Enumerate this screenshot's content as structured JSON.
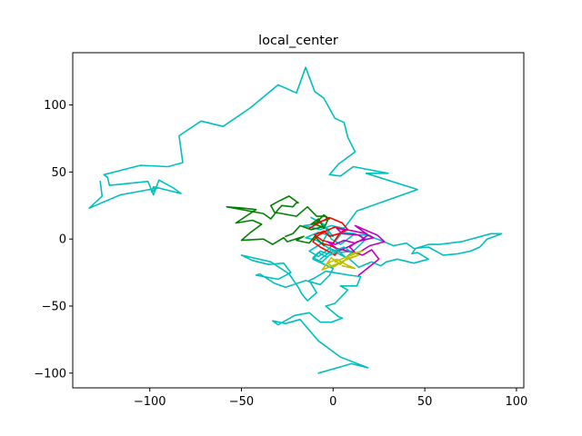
{
  "chart_data": {
    "type": "line",
    "title": "local_center",
    "xlabel": "",
    "ylabel": "",
    "xlim": [
      -142,
      104
    ],
    "ylim": [
      -111,
      139
    ],
    "xticks": [
      -100,
      -50,
      0,
      50,
      100
    ],
    "xtick_labels": [
      "−100",
      "−50",
      "0",
      "50",
      "100"
    ],
    "yticks": [
      -100,
      -50,
      0,
      50,
      100
    ],
    "ytick_labels": [
      "−100",
      "−50",
      "0",
      "50",
      "100"
    ],
    "grid": false,
    "legend": "none",
    "series": [
      {
        "color": "#00bfbf",
        "x": [
          -8,
          10,
          19,
          4,
          -8,
          -18,
          -26,
          -33,
          -30,
          -21,
          -13,
          -7,
          -1,
          5,
          3,
          -4,
          1,
          8,
          4,
          13,
          15,
          9,
          -4,
          -10,
          -13,
          -9,
          -14,
          -17,
          -19,
          -24,
          -34,
          -50,
          -44,
          -35,
          -27,
          -23,
          -30,
          -42,
          -40,
          -32,
          -26,
          -15,
          -7,
          -2,
          0,
          -11,
          -7,
          -3,
          -1,
          -9,
          -15,
          -8,
          0,
          -5,
          -8,
          -12,
          -5,
          -1,
          4,
          11,
          18,
          26,
          33,
          40,
          44,
          52,
          60,
          68,
          75,
          80,
          84,
          92,
          86,
          70,
          58,
          52,
          45,
          43,
          46,
          52,
          44,
          35,
          29,
          26,
          21,
          14,
          9,
          3,
          -2,
          5,
          12,
          18,
          11,
          4,
          -2,
          -8,
          -13,
          -6,
          -2,
          -10,
          -16,
          -7,
          -1,
          6,
          13,
          46,
          18,
          30,
          11,
          4,
          -2,
          3,
          12,
          8,
          6,
          1,
          -5,
          -10,
          -15,
          -20,
          -30,
          -45,
          -60,
          -72,
          -84,
          -82,
          -90,
          -105,
          -125,
          -123,
          -122,
          -101,
          -98,
          -95,
          -87,
          -83,
          -98,
          -99,
          -96,
          -116,
          -133,
          -126,
          -127
        ],
        "y": [
          -100,
          -93,
          -96,
          -88,
          -76,
          -60,
          -63,
          -61,
          -64,
          -57,
          -55,
          -62,
          -62,
          -59,
          -58,
          -50,
          -48,
          -38,
          -35,
          -35,
          -28,
          -27,
          -24,
          -29,
          -31,
          -40,
          -46,
          -41,
          -36,
          -26,
          -17,
          -12,
          -16,
          -19,
          -18,
          -25,
          -30,
          -27,
          -26,
          -33,
          -36,
          -31,
          -34,
          -27,
          -22,
          -15,
          -9,
          -11,
          -8,
          -1,
          1,
          5,
          2,
          10,
          13,
          16,
          11,
          0,
          -4,
          3,
          3,
          -1,
          -5,
          -3,
          -7,
          -6,
          -12,
          -11,
          -9,
          -6,
          0,
          4,
          4,
          -2,
          -4,
          -4,
          -7,
          -11,
          -10,
          -15,
          -18,
          -15,
          -17,
          -20,
          -17,
          -21,
          -15,
          -11,
          -7,
          5,
          4,
          0,
          -9,
          -10,
          -7,
          -13,
          -9,
          -3,
          7,
          11,
          10,
          7,
          10,
          8,
          21,
          37,
          49,
          49,
          54,
          47,
          48,
          56,
          65,
          76,
          87,
          90,
          105,
          110,
          128,
          109,
          115,
          98,
          84,
          88,
          77,
          57,
          54,
          55,
          48,
          46,
          40,
          43,
          33,
          44,
          38,
          34,
          39,
          35,
          38,
          33,
          23,
          32,
          43
        ]
      },
      {
        "color": "#008000",
        "x": [
          -5,
          -10,
          -13,
          -20,
          -16,
          -25,
          -27,
          -33,
          -38,
          -50,
          -45,
          -39,
          -44,
          -53,
          -42,
          -49,
          -58,
          -38,
          -34,
          -30,
          -28,
          -22,
          -20,
          -19,
          -24,
          -30,
          -34,
          -32,
          -20,
          -14,
          -9,
          -4,
          -3,
          -5,
          -8,
          -12,
          -2,
          -5,
          -10,
          -6,
          -12,
          -18,
          -22,
          -26
        ],
        "y": [
          -5,
          2,
          -3,
          -1,
          2,
          -2,
          1,
          -4,
          0,
          -1,
          5,
          11,
          14,
          12,
          22,
          23,
          24,
          19,
          15,
          22,
          25,
          24,
          27,
          27,
          32,
          28,
          25,
          20,
          17,
          24,
          17,
          17,
          14,
          8,
          15,
          11,
          15,
          18,
          11,
          9,
          7,
          10,
          4,
          2
        ]
      },
      {
        "color": "#ff0000",
        "x": [
          -13,
          -8,
          -5,
          -2,
          5,
          8,
          3,
          -2,
          -5,
          -10,
          -6,
          0,
          3,
          6,
          1,
          -4,
          -9,
          -11,
          -7,
          -3,
          1,
          3,
          -1,
          -4,
          -6
        ],
        "y": [
          8,
          12,
          14,
          16,
          12,
          7,
          4,
          2,
          6,
          3,
          -1,
          -3,
          3,
          7,
          9,
          6,
          2,
          -2,
          -6,
          -9,
          -12,
          -8,
          -5,
          -4,
          -3
        ]
      },
      {
        "color": "#bf00bf",
        "x": [
          14,
          25,
          21,
          16,
          12,
          9,
          13,
          22,
          18,
          11,
          7,
          2,
          5,
          14,
          17,
          12,
          6,
          1,
          -3,
          2,
          8,
          13,
          20,
          28,
          24,
          17,
          12,
          16,
          19,
          15,
          8,
          3
        ],
        "y": [
          -27,
          -15,
          -8,
          -12,
          -10,
          -6,
          -2,
          1,
          4,
          6,
          7,
          8,
          4,
          3,
          0,
          -3,
          -1,
          -4,
          -2,
          -7,
          -9,
          -11,
          -5,
          -2,
          3,
          7,
          10,
          6,
          3,
          -1,
          -6,
          -9
        ]
      },
      {
        "color": "#00bfbf",
        "x": [
          -4,
          -8,
          -11,
          -6,
          -2,
          3,
          7,
          10,
          6,
          2,
          -3,
          -7
        ],
        "y": [
          -13,
          -10,
          -14,
          -17,
          -12,
          -9,
          -14,
          -10,
          -6,
          -8,
          -11,
          -15
        ]
      },
      {
        "color": "#bfbf00",
        "x": [
          1,
          8,
          16,
          10,
          4,
          -1,
          -6,
          3,
          9,
          14,
          6,
          0,
          -3,
          2,
          7,
          12,
          5
        ],
        "y": [
          -17,
          -13,
          -9,
          -11,
          -19,
          -14,
          -23,
          -18,
          -14,
          -12,
          -16,
          -21,
          -18,
          -15,
          -19,
          -22,
          -20
        ]
      }
    ]
  }
}
